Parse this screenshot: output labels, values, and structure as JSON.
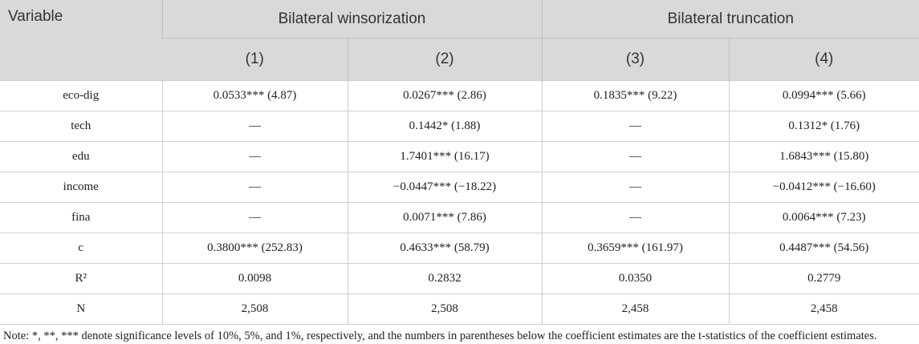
{
  "table": {
    "var_header": "Variable",
    "groups": [
      {
        "label": "Bilateral winsorization"
      },
      {
        "label": "Bilateral truncation"
      }
    ],
    "columns": [
      "(1)",
      "(2)",
      "(3)",
      "(4)"
    ],
    "rows": [
      {
        "name": "eco-dig",
        "cells": [
          "0.0533*** (4.87)",
          "0.0267*** (2.86)",
          "0.1835*** (9.22)",
          "0.0994*** (5.66)"
        ]
      },
      {
        "name": "tech",
        "cells": [
          "—",
          "0.1442* (1.88)",
          "—",
          "0.1312* (1.76)"
        ]
      },
      {
        "name": "edu",
        "cells": [
          "—",
          "1.7401*** (16.17)",
          "—",
          "1.6843*** (15.80)"
        ]
      },
      {
        "name": "income",
        "cells": [
          "—",
          "−0.0447*** (−18.22)",
          "—",
          "−0.0412*** (−16.60)"
        ]
      },
      {
        "name": "fina",
        "cells": [
          "—",
          "0.0071*** (7.86)",
          "—",
          "0.0064*** (7.23)"
        ]
      },
      {
        "name": "c",
        "cells": [
          "0.3800*** (252.83)",
          "0.4633*** (58.79)",
          "0.3659*** (161.97)",
          "0.4487*** (54.56)"
        ]
      },
      {
        "name": "R²",
        "cells": [
          "0.0098",
          "0.2832",
          "0.0350",
          "0.2779"
        ]
      },
      {
        "name": "N",
        "cells": [
          "2,508",
          "2,508",
          "2,458",
          "2,458"
        ]
      }
    ]
  },
  "note": "Note: *, **, *** denote significance levels of 10%, 5%, and 1%, respectively, and the numbers in parentheses below the coefficient estimates are the t-statistics of the coefficient estimates."
}
